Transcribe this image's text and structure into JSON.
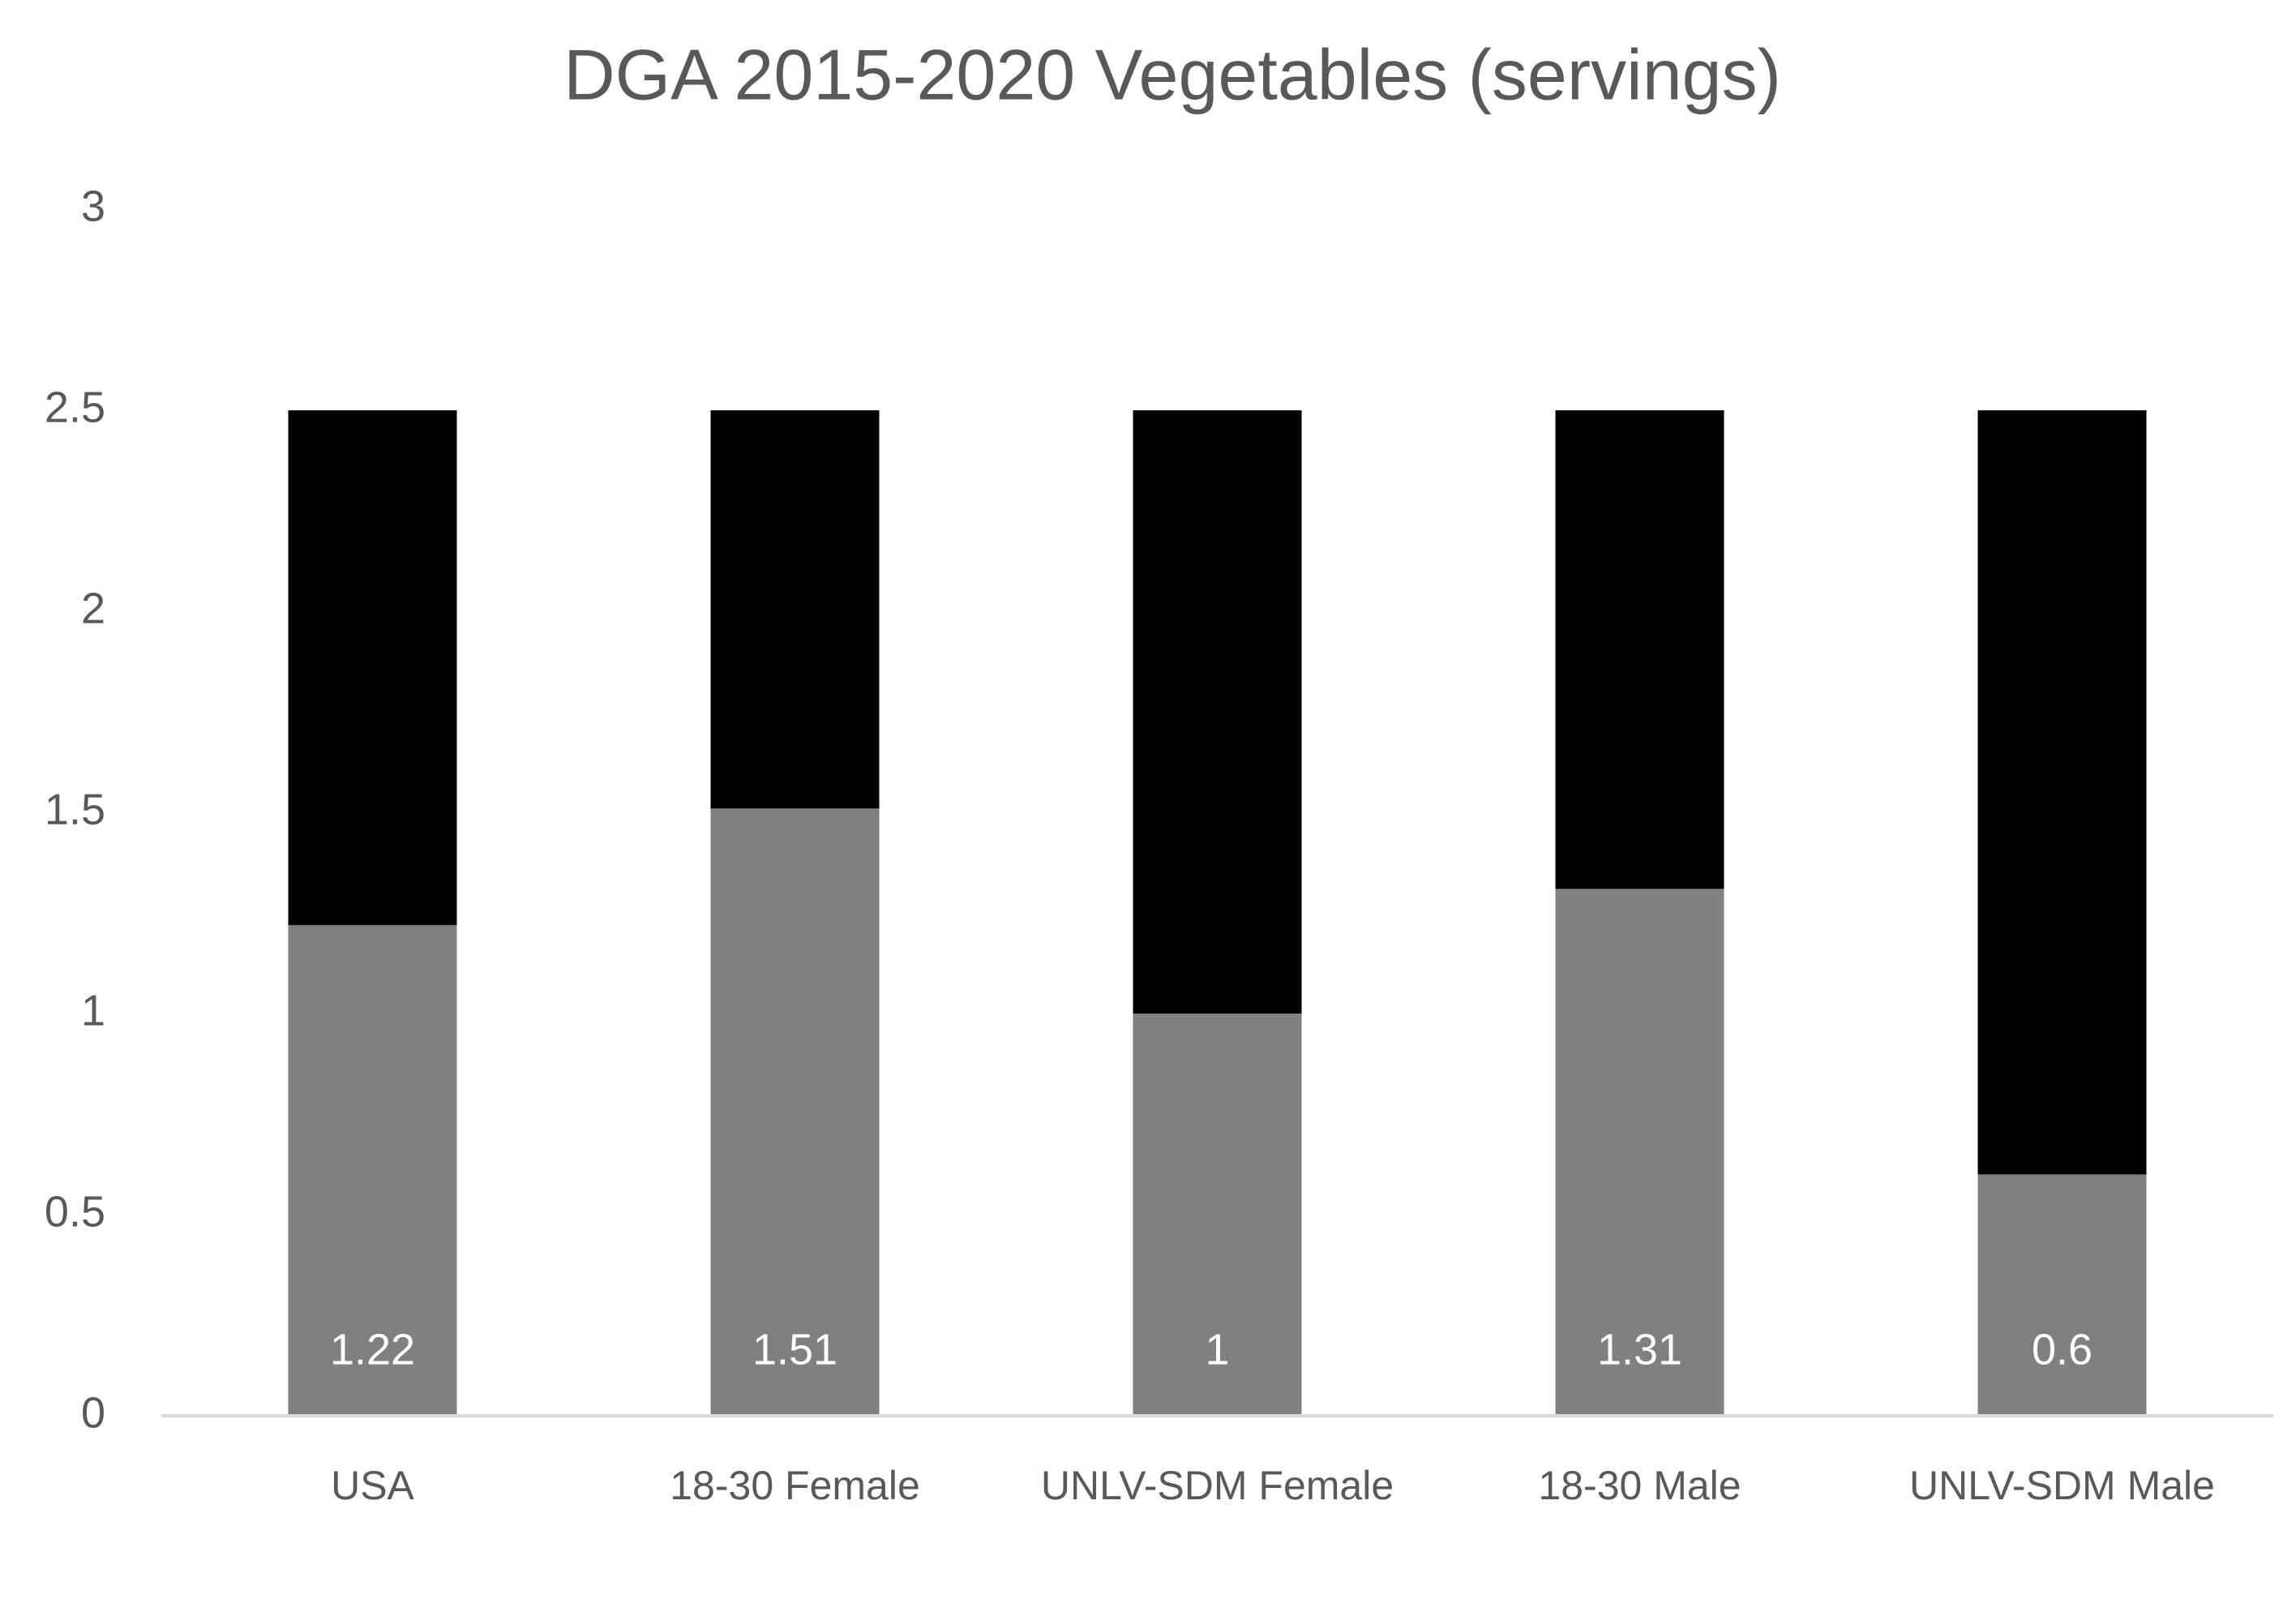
{
  "chart_data": {
    "type": "stacked_bar",
    "title": "DGA 2015-2020 Vegetables (servings)",
    "categories": [
      "USA",
      "18-30 Female",
      "UNLV-SDM Female",
      "18-30 Male",
      "UNLV-SDM Male"
    ],
    "series": [
      {
        "color": "#808080",
        "values": [
          1.22,
          1.51,
          1,
          1.31,
          0.6
        ]
      },
      {
        "color": "#000000",
        "values": [
          1.28,
          0.99,
          1.5,
          1.19,
          1.9
        ]
      }
    ],
    "ylim": [
      0,
      3
    ],
    "yticks": [
      0,
      0.5,
      1,
      1.5,
      2,
      2.5,
      3
    ],
    "grid": false
  }
}
